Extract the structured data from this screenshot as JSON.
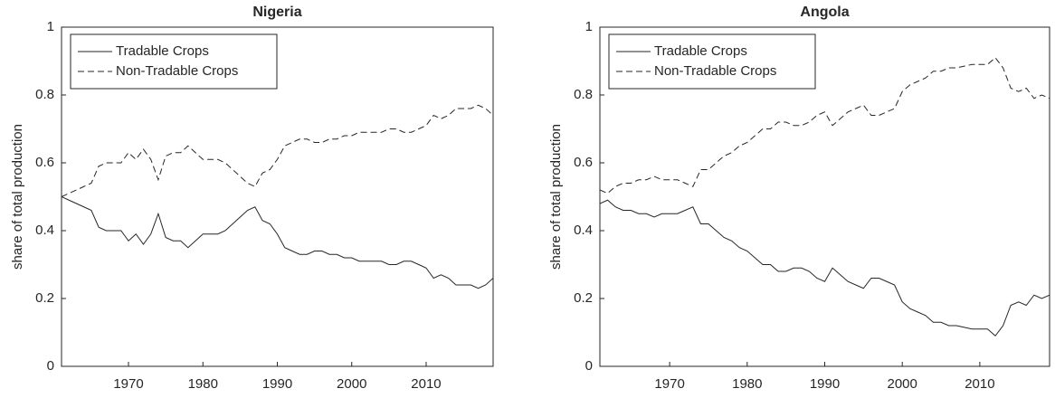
{
  "chart_data": [
    {
      "type": "line",
      "title": "Nigeria",
      "ylabel": "share of total production",
      "x": [
        1961,
        1962,
        1963,
        1964,
        1965,
        1966,
        1967,
        1968,
        1969,
        1970,
        1971,
        1972,
        1973,
        1974,
        1975,
        1976,
        1977,
        1978,
        1979,
        1980,
        1981,
        1982,
        1983,
        1984,
        1985,
        1986,
        1987,
        1988,
        1989,
        1990,
        1991,
        1992,
        1993,
        1994,
        1995,
        1996,
        1997,
        1998,
        1999,
        2000,
        2001,
        2002,
        2003,
        2004,
        2005,
        2006,
        2007,
        2008,
        2009,
        2010,
        2011,
        2012,
        2013,
        2014,
        2015,
        2016,
        2017,
        2018,
        2019
      ],
      "xlim": [
        1961,
        2019
      ],
      "xticks": [
        1970,
        1980,
        1990,
        2000,
        2010
      ],
      "ylim": [
        0,
        1
      ],
      "yticks": [
        0,
        0.2,
        0.4,
        0.6,
        0.8,
        1
      ],
      "legend": "northwest",
      "series": [
        {
          "name": "Tradable Crops",
          "color": "#262626",
          "linestyle": "solid",
          "values": [
            0.5,
            0.49,
            0.48,
            0.47,
            0.46,
            0.41,
            0.4,
            0.4,
            0.4,
            0.37,
            0.39,
            0.36,
            0.39,
            0.45,
            0.38,
            0.37,
            0.37,
            0.35,
            0.37,
            0.39,
            0.39,
            0.39,
            0.4,
            0.42,
            0.44,
            0.46,
            0.47,
            0.43,
            0.42,
            0.39,
            0.35,
            0.34,
            0.33,
            0.33,
            0.34,
            0.34,
            0.33,
            0.33,
            0.32,
            0.32,
            0.31,
            0.31,
            0.31,
            0.31,
            0.3,
            0.3,
            0.31,
            0.31,
            0.3,
            0.29,
            0.26,
            0.27,
            0.26,
            0.24,
            0.24,
            0.24,
            0.23,
            0.24,
            0.26
          ]
        },
        {
          "name": "Non-Tradable Crops",
          "color": "#262626",
          "linestyle": "dashed",
          "values": [
            0.5,
            0.51,
            0.52,
            0.53,
            0.54,
            0.59,
            0.6,
            0.6,
            0.6,
            0.63,
            0.61,
            0.64,
            0.61,
            0.55,
            0.62,
            0.63,
            0.63,
            0.65,
            0.63,
            0.61,
            0.61,
            0.61,
            0.6,
            0.58,
            0.56,
            0.54,
            0.53,
            0.57,
            0.58,
            0.61,
            0.65,
            0.66,
            0.67,
            0.67,
            0.66,
            0.66,
            0.67,
            0.67,
            0.68,
            0.68,
            0.69,
            0.69,
            0.69,
            0.69,
            0.7,
            0.7,
            0.69,
            0.69,
            0.7,
            0.71,
            0.74,
            0.73,
            0.74,
            0.76,
            0.76,
            0.76,
            0.77,
            0.76,
            0.74
          ]
        }
      ]
    },
    {
      "type": "line",
      "title": "Angola",
      "ylabel": "share of total production",
      "x": [
        1961,
        1962,
        1963,
        1964,
        1965,
        1966,
        1967,
        1968,
        1969,
        1970,
        1971,
        1972,
        1973,
        1974,
        1975,
        1976,
        1977,
        1978,
        1979,
        1980,
        1981,
        1982,
        1983,
        1984,
        1985,
        1986,
        1987,
        1988,
        1989,
        1990,
        1991,
        1992,
        1993,
        1994,
        1995,
        1996,
        1997,
        1998,
        1999,
        2000,
        2001,
        2002,
        2003,
        2004,
        2005,
        2006,
        2007,
        2008,
        2009,
        2010,
        2011,
        2012,
        2013,
        2014,
        2015,
        2016,
        2017,
        2018,
        2019
      ],
      "xlim": [
        1961,
        2019
      ],
      "xticks": [
        1970,
        1980,
        1990,
        2000,
        2010
      ],
      "ylim": [
        0,
        1
      ],
      "yticks": [
        0,
        0.2,
        0.4,
        0.6,
        0.8,
        1
      ],
      "legend": "northwest",
      "series": [
        {
          "name": "Tradable Crops",
          "color": "#262626",
          "linestyle": "solid",
          "values": [
            0.48,
            0.49,
            0.47,
            0.46,
            0.46,
            0.45,
            0.45,
            0.44,
            0.45,
            0.45,
            0.45,
            0.46,
            0.47,
            0.42,
            0.42,
            0.4,
            0.38,
            0.37,
            0.35,
            0.34,
            0.32,
            0.3,
            0.3,
            0.28,
            0.28,
            0.29,
            0.29,
            0.28,
            0.26,
            0.25,
            0.29,
            0.27,
            0.25,
            0.24,
            0.23,
            0.26,
            0.26,
            0.25,
            0.24,
            0.19,
            0.17,
            0.16,
            0.15,
            0.13,
            0.13,
            0.12,
            0.12,
            0.115,
            0.11,
            0.11,
            0.11,
            0.09,
            0.12,
            0.18,
            0.19,
            0.18,
            0.21,
            0.2,
            0.21
          ]
        },
        {
          "name": "Non-Tradable Crops",
          "color": "#262626",
          "linestyle": "dashed",
          "values": [
            0.52,
            0.51,
            0.53,
            0.54,
            0.54,
            0.55,
            0.55,
            0.56,
            0.55,
            0.55,
            0.55,
            0.54,
            0.53,
            0.58,
            0.58,
            0.6,
            0.62,
            0.63,
            0.65,
            0.66,
            0.68,
            0.7,
            0.7,
            0.72,
            0.72,
            0.71,
            0.71,
            0.72,
            0.74,
            0.75,
            0.71,
            0.73,
            0.75,
            0.76,
            0.77,
            0.74,
            0.74,
            0.75,
            0.76,
            0.81,
            0.83,
            0.84,
            0.85,
            0.87,
            0.87,
            0.88,
            0.88,
            0.885,
            0.89,
            0.89,
            0.89,
            0.91,
            0.88,
            0.82,
            0.81,
            0.82,
            0.79,
            0.8,
            0.79
          ]
        }
      ]
    }
  ]
}
